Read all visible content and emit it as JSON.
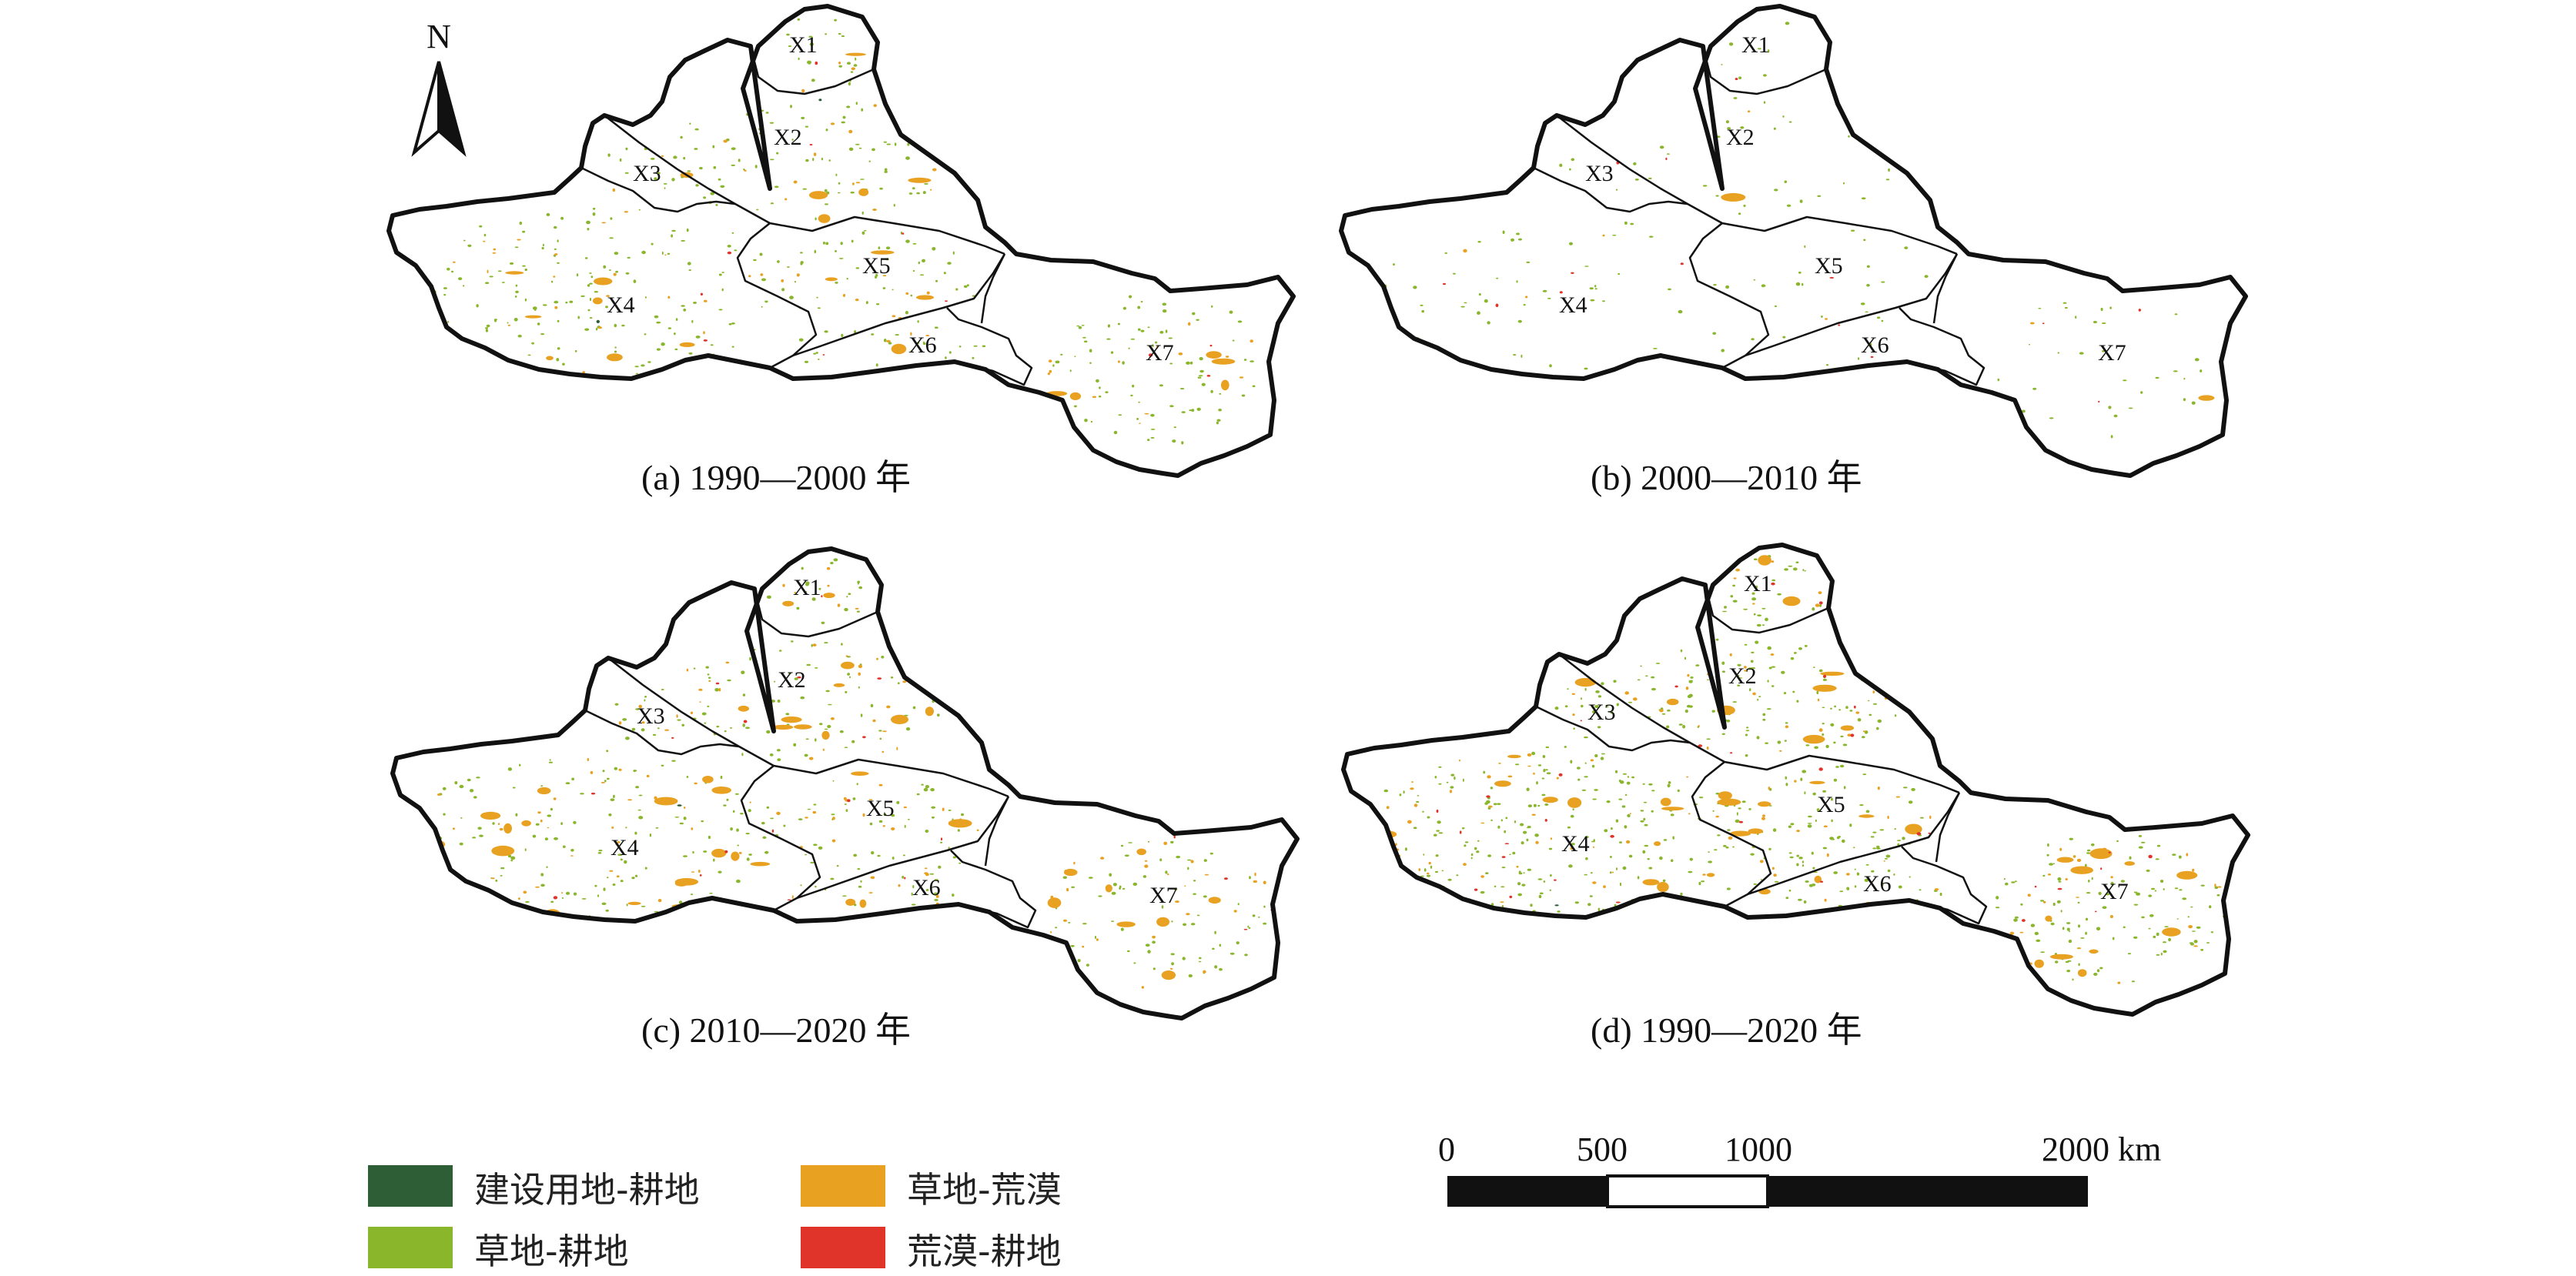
{
  "north_label": "N",
  "panels": [
    {
      "caption": "(a) 1990—2000 年",
      "density": {
        "orange": 0.55,
        "green": 1.0,
        "red": 0.25,
        "dkgreen": 0.1
      }
    },
    {
      "caption": "(b) 2000—2010 年",
      "density": {
        "orange": 0.05,
        "green": 0.35,
        "red": 0.25,
        "dkgreen": 0.0
      }
    },
    {
      "caption": "(c) 2010—2020 年",
      "density": {
        "orange": 1.0,
        "green": 0.9,
        "red": 0.4,
        "dkgreen": 0.05
      }
    },
    {
      "caption": "(d) 1990—2020 年",
      "density": {
        "orange": 1.0,
        "green": 1.4,
        "red": 0.6,
        "dkgreen": 0.08
      }
    }
  ],
  "regions": [
    "X1",
    "X2",
    "X3",
    "X4",
    "X5",
    "X6",
    "X7"
  ],
  "legend": [
    {
      "label": "建设用地-耕地",
      "color": "#2e5e36"
    },
    {
      "label": "草地-荒漠",
      "color": "#e8a121"
    },
    {
      "label": "草地-耕地",
      "color": "#8ab62c"
    },
    {
      "label": "荒漠-耕地",
      "color": "#e0342a"
    }
  ],
  "scale_bar": {
    "ticks": [
      "0",
      "500",
      "1000",
      "2000 km"
    ]
  }
}
